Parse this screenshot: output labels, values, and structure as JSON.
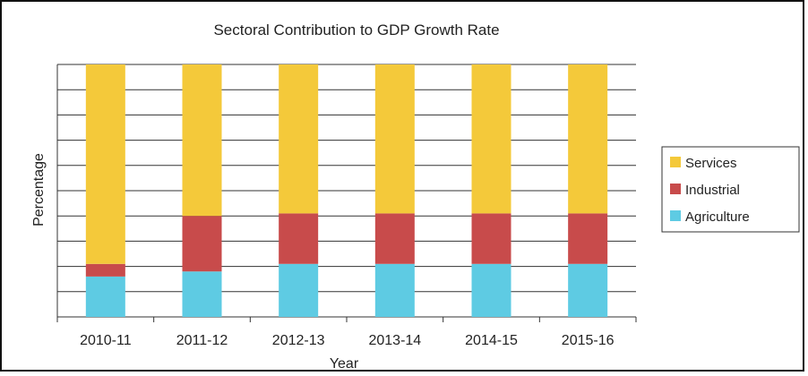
{
  "chart_data": {
    "type": "bar",
    "stacked": true,
    "title": "Sectoral Contribution to GDP Growth Rate",
    "xlabel": "Year",
    "ylabel": "Percentage",
    "categories": [
      "2010-11",
      "2011-12",
      "2012-13",
      "2013-14",
      "2014-15",
      "2015-16"
    ],
    "ylim": [
      0,
      100
    ],
    "grid": true,
    "legend_position": "right",
    "series": [
      {
        "name": "Agriculture",
        "color": "#5ecbe3",
        "values": [
          16,
          18,
          21,
          21,
          21,
          21
        ]
      },
      {
        "name": "Industrial",
        "color": "#c84b4b",
        "values": [
          5,
          22,
          20,
          20,
          20,
          20
        ]
      },
      {
        "name": "Services",
        "color": "#f4c93a",
        "values": [
          79,
          60,
          59,
          59,
          59,
          59
        ]
      }
    ],
    "legend_order": [
      "Services",
      "Industrial",
      "Agriculture"
    ]
  }
}
